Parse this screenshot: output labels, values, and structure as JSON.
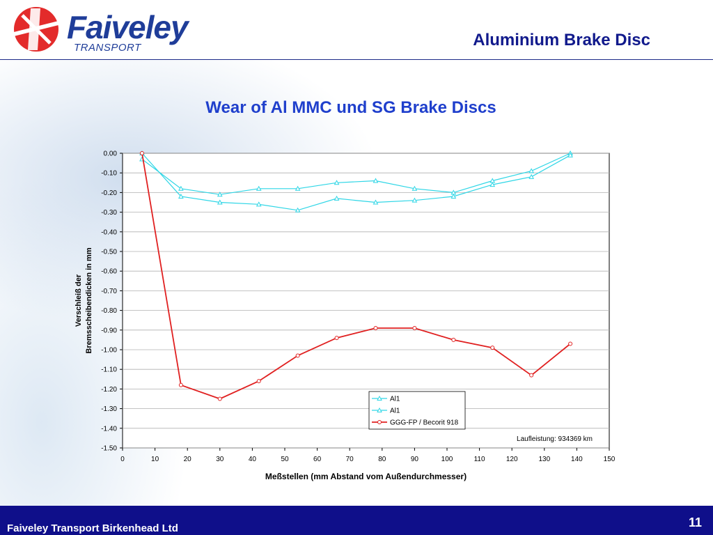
{
  "header": {
    "logo_name": "Faiveley",
    "logo_sub": "TRANSPORT",
    "slide_title": "Aluminium Brake Disc"
  },
  "footer": {
    "company": "Faiveley Transport Birkenhead Ltd",
    "page_number": "11"
  },
  "colors": {
    "brand_blue": "#1f3d99",
    "footer_bg": "#0f0f8a",
    "al_series": "#2ed6e6",
    "ggg_series": "#e02020",
    "logo_red": "#e32b2b"
  },
  "chart_data": {
    "type": "line",
    "title": "Wear  of Al MMC und SG Brake Discs",
    "xlabel": "Meßstellen (mm Abstand vom Außendurchmesser)",
    "ylabel_lines": [
      "Verschleiß der",
      "Bremsscheibendicken in mm"
    ],
    "xlim": [
      0,
      150
    ],
    "ylim": [
      -1.5,
      0.0
    ],
    "x_ticks": [
      0,
      10,
      20,
      30,
      40,
      50,
      60,
      70,
      80,
      90,
      100,
      110,
      120,
      130,
      140,
      150
    ],
    "y_ticks": [
      "0.00",
      "-0.10",
      "-0.20",
      "-0.30",
      "-0.40",
      "-0.50",
      "-0.60",
      "-0.70",
      "-0.80",
      "-0.90",
      "-1.00",
      "-1.10",
      "-1.20",
      "-1.30",
      "-1.40",
      "-1.50"
    ],
    "grid": true,
    "legend_position": "bottom-right",
    "annotation": "Laufleistung: 934369 km",
    "series": [
      {
        "name": "Al1",
        "marker": "triangle",
        "color": "#2ed6e6",
        "x": [
          6,
          18,
          30,
          42,
          54,
          66,
          78,
          90,
          102,
          114,
          126,
          138
        ],
        "y": [
          -0.03,
          -0.18,
          -0.21,
          -0.18,
          -0.18,
          -0.15,
          -0.14,
          -0.18,
          -0.2,
          -0.14,
          -0.09,
          0.0
        ]
      },
      {
        "name": "Al1",
        "marker": "triangle",
        "color": "#2ed6e6",
        "x": [
          6,
          18,
          30,
          42,
          54,
          66,
          78,
          90,
          102,
          114,
          126,
          138
        ],
        "y": [
          0.0,
          -0.22,
          -0.25,
          -0.26,
          -0.29,
          -0.23,
          -0.25,
          -0.24,
          -0.22,
          -0.16,
          -0.12,
          -0.01
        ]
      },
      {
        "name": "GGG-FP / Becorit 918",
        "marker": "circle",
        "color": "#e02020",
        "x": [
          6,
          18,
          30,
          42,
          54,
          66,
          78,
          90,
          102,
          114,
          126,
          138
        ],
        "y": [
          0.0,
          -1.18,
          -1.25,
          -1.16,
          -1.03,
          -0.94,
          -0.89,
          -0.89,
          -0.95,
          -0.99,
          -1.13,
          -0.97
        ]
      }
    ]
  }
}
